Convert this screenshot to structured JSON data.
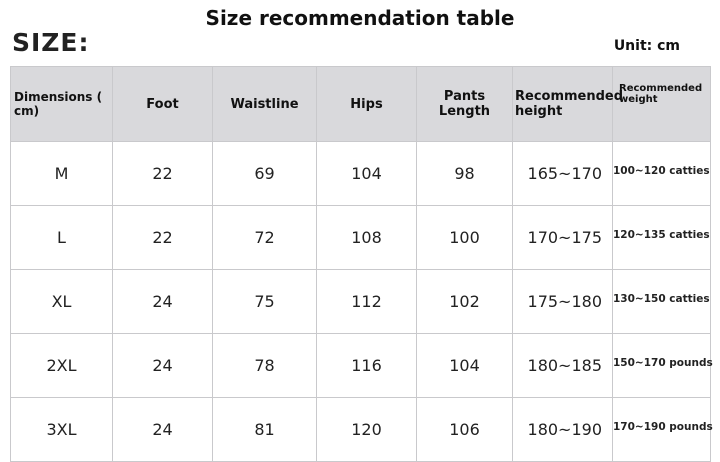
{
  "title": "Size recommendation table",
  "size_label": "SIZE:",
  "unit": "Unit: cm",
  "columns": [
    "Dimensions ( cm)",
    "Foot",
    "Waistline",
    "Hips",
    "Pants Length",
    "Recommended height",
    "Recommended weight"
  ],
  "rows": [
    [
      "M",
      "22",
      "69",
      "104",
      "98",
      "165~170",
      "100~120 catties"
    ],
    [
      "L",
      "22",
      "72",
      "108",
      "100",
      "170~175",
      "120~135 catties"
    ],
    [
      "XL",
      "24",
      "75",
      "112",
      "102",
      "175~180",
      "130~150 catties"
    ],
    [
      "2XL",
      "24",
      "78",
      "116",
      "104",
      "180~185",
      "150~170 pounds"
    ],
    [
      "3XL",
      "24",
      "81",
      "120",
      "106",
      "180~190",
      "170~190 pounds"
    ]
  ],
  "colors": {
    "header_bg": "#d9d9dc",
    "grid": "#c9c9cc"
  }
}
